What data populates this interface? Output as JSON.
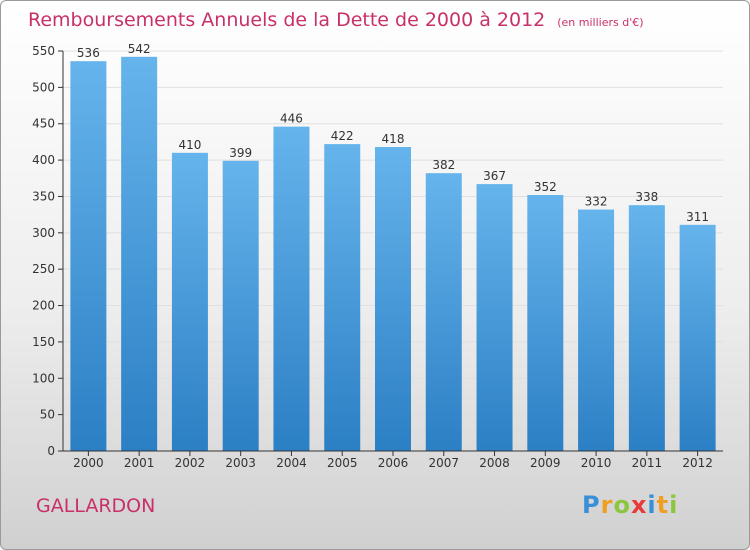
{
  "title": "Remboursements Annuels de la Dette de 2000 à 2012",
  "unit": "(en milliers d'€)",
  "city": "GALLARDON",
  "logo_text": "Proxiti",
  "colors": {
    "title": "#c9306a",
    "bar_top": "#66b4ec",
    "bar_bottom": "#2b7fc4",
    "grid": "#e0e0e0",
    "axis": "#333333"
  },
  "chart_data": {
    "type": "bar",
    "title": "Remboursements Annuels de la Dette de 2000 à 2012",
    "xlabel": "",
    "ylabel": "",
    "categories": [
      "2000",
      "2001",
      "2002",
      "2003",
      "2004",
      "2005",
      "2006",
      "2007",
      "2008",
      "2009",
      "2010",
      "2011",
      "2012"
    ],
    "values": [
      536,
      542,
      410,
      399,
      446,
      422,
      418,
      382,
      367,
      352,
      332,
      338,
      311
    ],
    "ylim": [
      0,
      550
    ],
    "yticks": [
      0,
      50,
      100,
      150,
      200,
      250,
      300,
      350,
      400,
      450,
      500,
      550
    ],
    "grid": true,
    "legend": "none"
  }
}
